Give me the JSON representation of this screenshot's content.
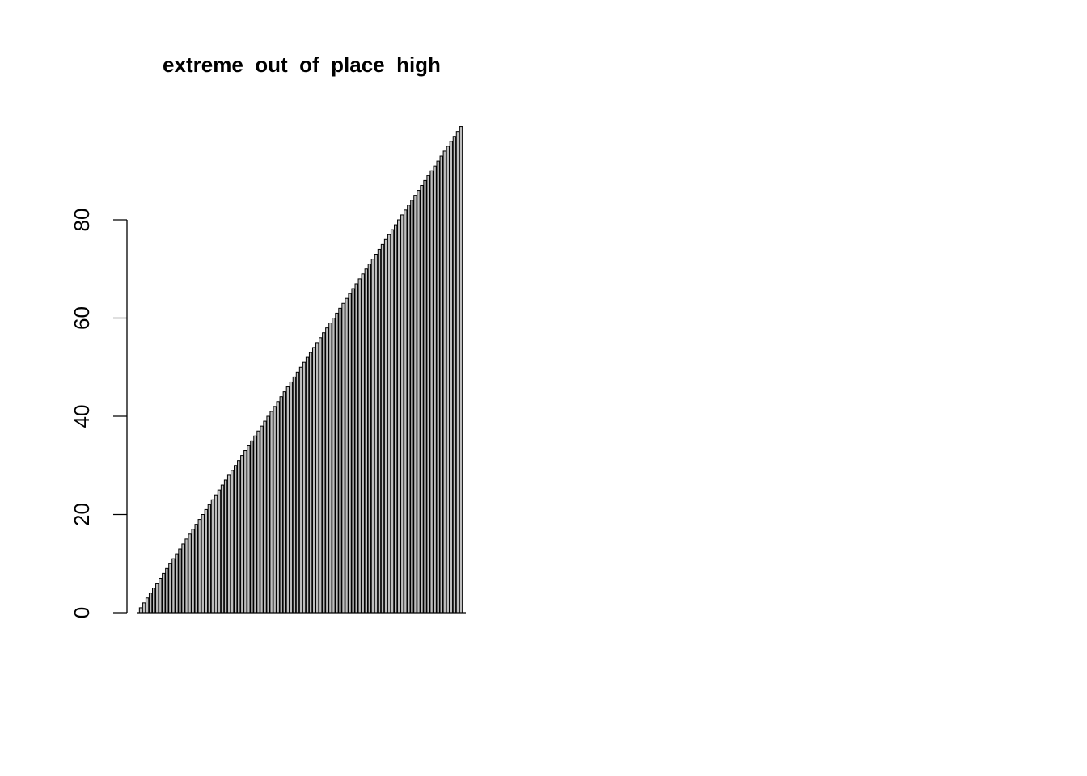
{
  "chart_data": {
    "type": "bar",
    "title": "extreme_out_of_place_high",
    "xlabel": "",
    "ylabel": "",
    "ylim": [
      0,
      100
    ],
    "yticks": [
      0,
      20,
      40,
      60,
      80
    ],
    "ytick_labels": [
      "0",
      "20",
      "40",
      "60",
      "80"
    ],
    "grid": false,
    "legend": "none",
    "bar_fill": "#bebebe",
    "bar_border": "#000000",
    "values": [
      1,
      2,
      3,
      4,
      5,
      6,
      7,
      8,
      9,
      10,
      11,
      12,
      13,
      14,
      15,
      16,
      17,
      18,
      19,
      20,
      21,
      22,
      23,
      24,
      25,
      26,
      27,
      28,
      29,
      30,
      31,
      32,
      33,
      34,
      35,
      36,
      37,
      38,
      39,
      40,
      41,
      42,
      43,
      44,
      45,
      46,
      47,
      48,
      49,
      50,
      51,
      52,
      53,
      54,
      55,
      56,
      57,
      58,
      59,
      60,
      61,
      62,
      63,
      64,
      65,
      66,
      67,
      68,
      69,
      70,
      71,
      72,
      73,
      74,
      75,
      76,
      77,
      78,
      79,
      80,
      81,
      82,
      83,
      84,
      85,
      86,
      87,
      88,
      89,
      90,
      91,
      92,
      93,
      94,
      95,
      96,
      97,
      98,
      99
    ]
  }
}
